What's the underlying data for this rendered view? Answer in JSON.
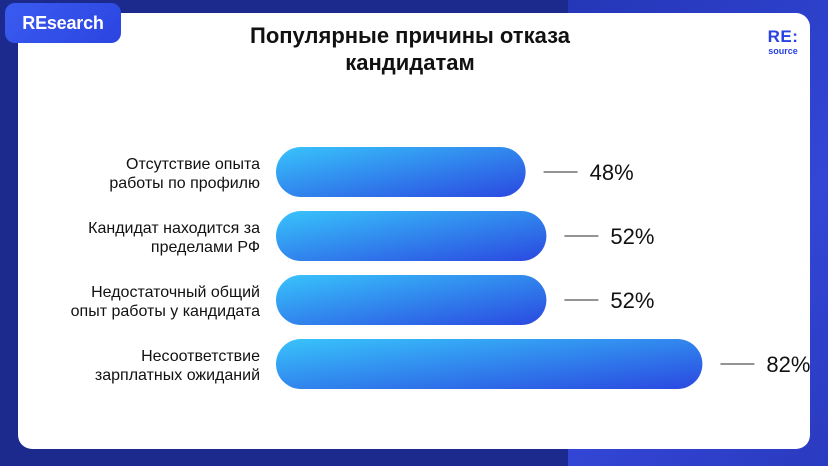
{
  "badge": {
    "label": "REsearch"
  },
  "logo": {
    "main": "RE:",
    "sub": "source"
  },
  "chart_data": {
    "type": "bar",
    "orientation": "horizontal",
    "title": "Популярные причины отказа кандидатам",
    "categories": [
      [
        "Отсутствие опыта",
        "работы по профилю"
      ],
      [
        "Кандидат находится за",
        "пределами РФ"
      ],
      [
        "Недостаточный общий",
        "опыт работы у кандидата"
      ],
      [
        "Несоответствие",
        "зарплатных ожиданий"
      ]
    ],
    "values": [
      48,
      52,
      52,
      82
    ],
    "value_labels": [
      "48%",
      "52%",
      "52%",
      "82%"
    ],
    "unit": "%",
    "grid": false,
    "legend": "none",
    "colors": {
      "bar_start": "#38c4fb",
      "bar_end": "#2a48e0",
      "leader_line": "#555555",
      "text": "#111111"
    }
  }
}
